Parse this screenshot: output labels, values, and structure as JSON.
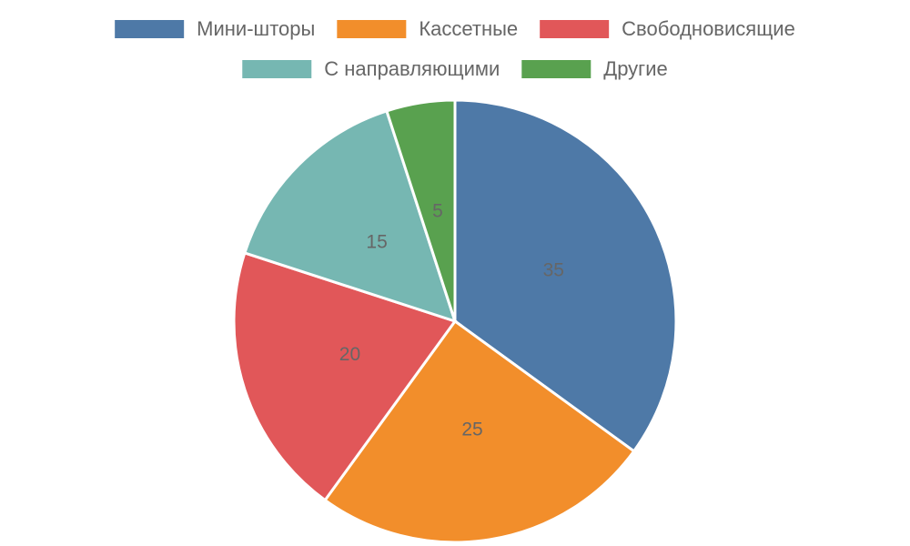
{
  "chart_data": {
    "type": "pie",
    "categories": [
      "Мини-шторы",
      "Кассетные",
      "Свободновисящие",
      "С направляющими",
      "Другие"
    ],
    "values": [
      35,
      25,
      20,
      15,
      5
    ],
    "colors": [
      "#4e79a7",
      "#f28e2b",
      "#e15759",
      "#76b7b2",
      "#59a14f"
    ],
    "legend": "top"
  }
}
